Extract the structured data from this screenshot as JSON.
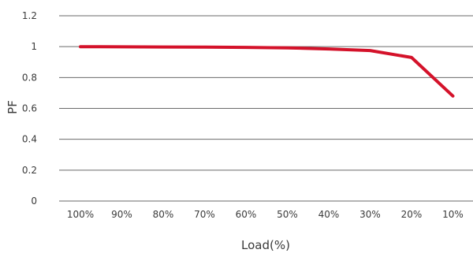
{
  "chart_data": {
    "type": "line",
    "categories": [
      "100%",
      "90%",
      "80%",
      "70%",
      "60%",
      "50%",
      "40%",
      "30%",
      "20%",
      "10%"
    ],
    "series": [
      {
        "values": [
          1.0,
          0.999,
          0.998,
          0.997,
          0.995,
          0.992,
          0.985,
          0.975,
          0.93,
          0.68
        ],
        "color": "#d4122a"
      }
    ],
    "ylim": [
      0,
      1.2
    ],
    "yticks": [
      0,
      0.2,
      0.4,
      0.6,
      0.8,
      1,
      1.2
    ],
    "ytick_labels": [
      "0",
      "0.2",
      "0.4",
      "0.6",
      "0.8",
      "1",
      "1.2"
    ],
    "xlabel": "Load(%)",
    "ylabel": "PF",
    "grid": "horizontal",
    "legend": "none"
  }
}
